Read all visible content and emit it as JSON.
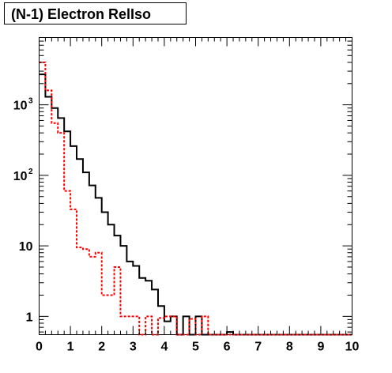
{
  "chart_data": {
    "type": "histogram",
    "title": "(N-1) Electron RelIso",
    "xlabel": "",
    "ylabel": "",
    "xlim": [
      0,
      10
    ],
    "ylim": [
      0.55,
      9000
    ],
    "y_scale": "log",
    "x_ticks": [
      "0",
      "1",
      "2",
      "3",
      "4",
      "5",
      "6",
      "7",
      "8",
      "9",
      "10"
    ],
    "y_ticks": [
      {
        "value": 1,
        "base": "1",
        "exp": ""
      },
      {
        "value": 10,
        "base": "10",
        "exp": ""
      },
      {
        "value": 100,
        "base": "10",
        "exp": "2"
      },
      {
        "value": 1000,
        "base": "10",
        "exp": "3"
      }
    ],
    "grid": false,
    "legend": "none",
    "bin_edges": [
      0,
      0.2,
      0.4,
      0.6,
      0.8,
      1.0,
      1.2,
      1.4,
      1.6,
      1.8,
      2.0,
      2.2,
      2.4,
      2.6,
      2.8,
      3.0,
      3.2,
      3.4,
      3.6,
      3.8,
      4.0,
      4.2,
      4.4,
      4.6,
      4.8,
      5.0,
      5.2,
      5.4,
      5.6,
      5.8,
      6.0,
      6.2,
      6.4,
      6.6,
      6.8,
      7.0,
      7.2,
      7.4,
      7.6,
      7.8,
      8.0,
      8.2,
      8.4,
      8.6,
      8.8,
      9.0,
      9.2,
      9.4,
      9.6,
      9.8,
      10.0
    ],
    "series": [
      {
        "color": "#000000",
        "line_style": "solid",
        "values": [
          2700,
          1300,
          900,
          650,
          420,
          260,
          170,
          110,
          72,
          48,
          30,
          20,
          14,
          10,
          6,
          5.2,
          3.5,
          3.2,
          2.4,
          1.4,
          0.85,
          1.0,
          0,
          1.0,
          0,
          1.0,
          0,
          0,
          0,
          0,
          0.6,
          0,
          0,
          0,
          0,
          0,
          0,
          0,
          0,
          0,
          0,
          0,
          0,
          0,
          0,
          0,
          0,
          0,
          0,
          0
        ]
      },
      {
        "color": "#ff0000",
        "line_style": "dashed",
        "values": [
          4000,
          1600,
          550,
          400,
          60,
          33,
          9.5,
          9,
          7,
          8,
          2,
          2,
          5,
          1,
          1,
          1,
          0,
          1,
          0,
          0.95,
          1,
          1,
          0,
          0,
          0.92,
          0,
          1,
          0,
          0,
          0,
          0,
          0,
          0,
          0,
          0,
          0,
          0,
          0,
          0,
          0,
          0,
          0,
          0,
          0,
          0,
          0,
          0,
          0,
          0,
          0
        ]
      }
    ]
  }
}
